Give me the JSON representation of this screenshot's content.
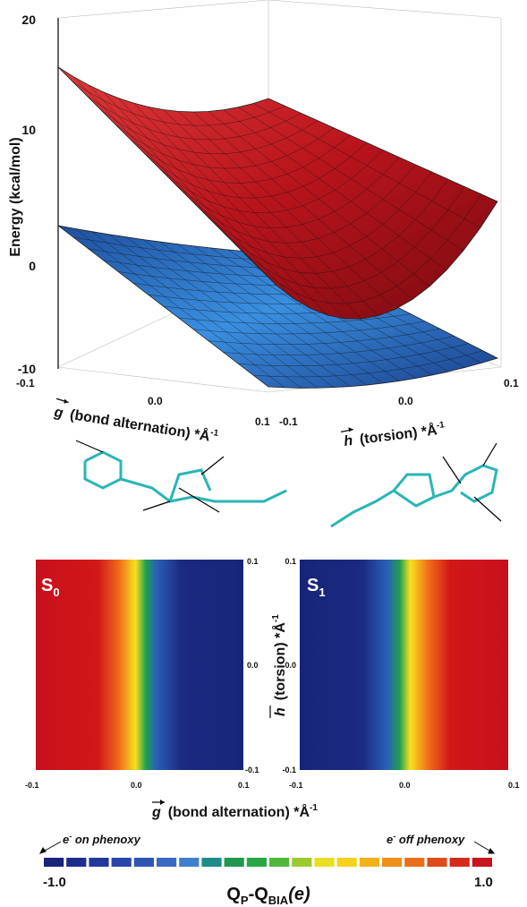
{
  "surface_plot": {
    "z_label": "Energy (kcal/mol)",
    "z_ticks": [
      "20",
      "10",
      "0",
      "-10"
    ],
    "g_ticks": [
      "-0.1",
      "0.0",
      "0.1"
    ],
    "h_ticks": [
      "-0.1",
      "0.0",
      "0.1"
    ],
    "g_label": {
      "symbol": "g",
      "text": "(bond alternation) *Å",
      "sup": "-1"
    },
    "h_label": {
      "symbol": "h",
      "text": "(torsion) *Å",
      "sup": "-1"
    }
  },
  "contour_maps": {
    "left": {
      "name": "S",
      "sub": "0",
      "x_ticks": [
        "-0.1",
        "0.0",
        "0.1"
      ],
      "y_ticks": [
        "0.1",
        "0.0",
        "-0.1"
      ]
    },
    "right": {
      "name": "S",
      "sub": "1",
      "x_ticks": [
        "-0.1",
        "0.0",
        "0.1"
      ],
      "y_ticks": [
        "0.1",
        "0.0",
        "-0.1"
      ]
    },
    "x_label": {
      "symbol": "g",
      "text": "(bond alternation) *Å",
      "sup": "-1"
    },
    "y_label": {
      "symbol": "h",
      "text": "(torsion) *Å",
      "sup": "-1"
    }
  },
  "colorbar": {
    "left_note": {
      "base": "e",
      "sup": "-",
      "rest": " on phenoxy"
    },
    "right_note": {
      "base": "e",
      "sup": "-",
      "rest": " off phenoxy"
    },
    "min_label": "-1.0",
    "max_label": "1.0",
    "label": {
      "q1": "Q",
      "s1": "P",
      "q2": "-Q",
      "s2": "BIA",
      "tail": "(e)"
    }
  }
}
